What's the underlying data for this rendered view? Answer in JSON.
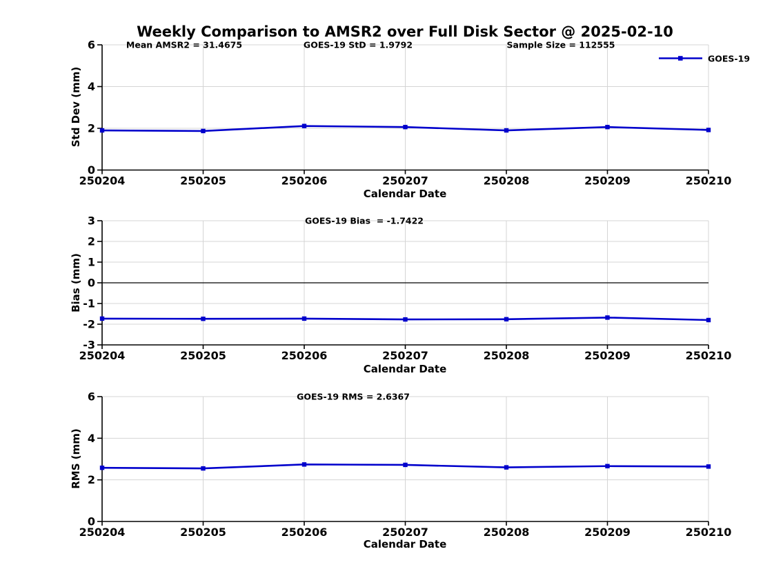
{
  "title": "Weekly Comparison to AMSR2 over Full Disk Sector @ 2025-02-10",
  "legend": {
    "label": "GOES-19",
    "position": "top-right"
  },
  "colors": {
    "line": "#0000CC",
    "grid": "#d4d4d4",
    "axis": "#000000",
    "zero_line": "#000000",
    "background": "#ffffff",
    "text": "#000000"
  },
  "chart_data": [
    {
      "type": "line",
      "name": "std-dev",
      "categories": [
        "250204",
        "250205",
        "250206",
        "250207",
        "250208",
        "250209",
        "250210"
      ],
      "series": [
        {
          "name": "GOES-19",
          "values": [
            1.9,
            1.87,
            2.11,
            2.06,
            1.9,
            2.06,
            1.92
          ]
        }
      ],
      "annotations": [
        "Mean AMSR2 = 31.4675",
        "GOES-19 StD = 1.9792",
        "Sample Size = 112555"
      ],
      "xlabel": "Calendar Date",
      "ylabel": "Std Dev (mm)",
      "ylim": [
        0,
        6
      ],
      "yticks": [
        0,
        2,
        4,
        6
      ],
      "grid": true,
      "zero_line": false
    },
    {
      "type": "line",
      "name": "bias",
      "categories": [
        "250204",
        "250205",
        "250206",
        "250207",
        "250208",
        "250209",
        "250210"
      ],
      "series": [
        {
          "name": "GOES-19",
          "values": [
            -1.73,
            -1.74,
            -1.73,
            -1.77,
            -1.76,
            -1.68,
            -1.8
          ]
        }
      ],
      "annotations": [
        "GOES-19 Bias  = -1.7422"
      ],
      "xlabel": "Calendar Date",
      "ylabel": "Bias (mm)",
      "ylim": [
        -3,
        3
      ],
      "yticks": [
        -3,
        -2,
        -1,
        0,
        1,
        2,
        3
      ],
      "grid": true,
      "zero_line": true
    },
    {
      "type": "line",
      "name": "rms",
      "categories": [
        "250204",
        "250205",
        "250206",
        "250207",
        "250208",
        "250209",
        "250210"
      ],
      "series": [
        {
          "name": "GOES-19",
          "values": [
            2.58,
            2.55,
            2.74,
            2.72,
            2.6,
            2.66,
            2.64
          ]
        }
      ],
      "annotations": [
        "GOES-19 RMS = 2.6367"
      ],
      "xlabel": "Calendar Date",
      "ylabel": "RMS (mm)",
      "ylim": [
        0,
        6
      ],
      "yticks": [
        0,
        2,
        4,
        6
      ],
      "grid": true,
      "zero_line": false
    }
  ]
}
